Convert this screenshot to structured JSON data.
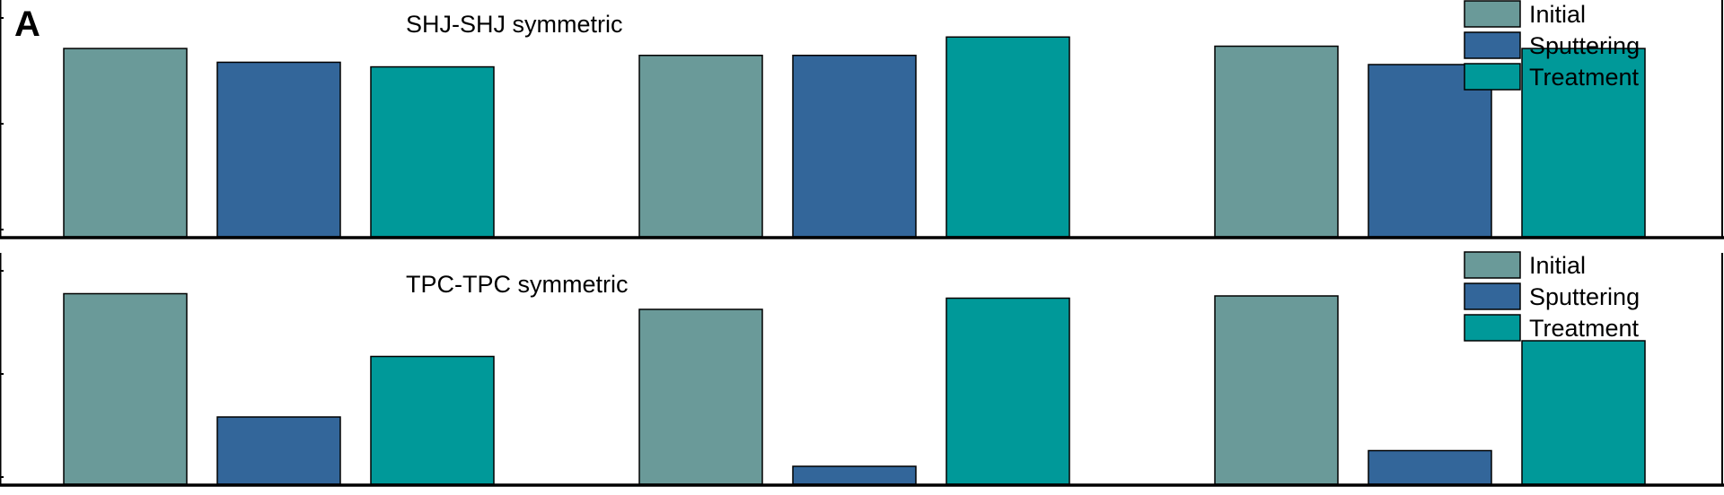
{
  "figure": {
    "panel_label": "A",
    "colors": {
      "Initial": "#6a9a99",
      "Sputtering": "#33669a",
      "Treatment": "#009999",
      "outline": "#000000"
    }
  },
  "chart_data": [
    {
      "type": "bar",
      "title": "SHJ-SHJ symmetric",
      "xlabel": "",
      "ylabel": "",
      "categories": [
        "",
        "",
        ""
      ],
      "ylim": [
        0,
        1
      ],
      "grid": false,
      "legend": "top-right",
      "series": [
        {
          "name": "Initial",
          "values": [
            0.82,
            0.79,
            0.83
          ]
        },
        {
          "name": "Sputtering",
          "values": [
            0.76,
            0.79,
            0.75
          ]
        },
        {
          "name": "Treatment",
          "values": [
            0.74,
            0.87,
            0.82
          ]
        }
      ]
    },
    {
      "type": "bar",
      "title": "TPC-TPC symmetric",
      "xlabel": "",
      "ylabel": "",
      "categories": [
        "",
        "",
        ""
      ],
      "ylim": [
        0,
        1
      ],
      "grid": false,
      "legend": "top-right",
      "series": [
        {
          "name": "Initial",
          "values": [
            0.85,
            0.78,
            0.84
          ]
        },
        {
          "name": "Sputtering",
          "values": [
            0.3,
            0.08,
            0.15
          ]
        },
        {
          "name": "Treatment",
          "values": [
            0.57,
            0.83,
            0.64
          ]
        }
      ]
    }
  ]
}
